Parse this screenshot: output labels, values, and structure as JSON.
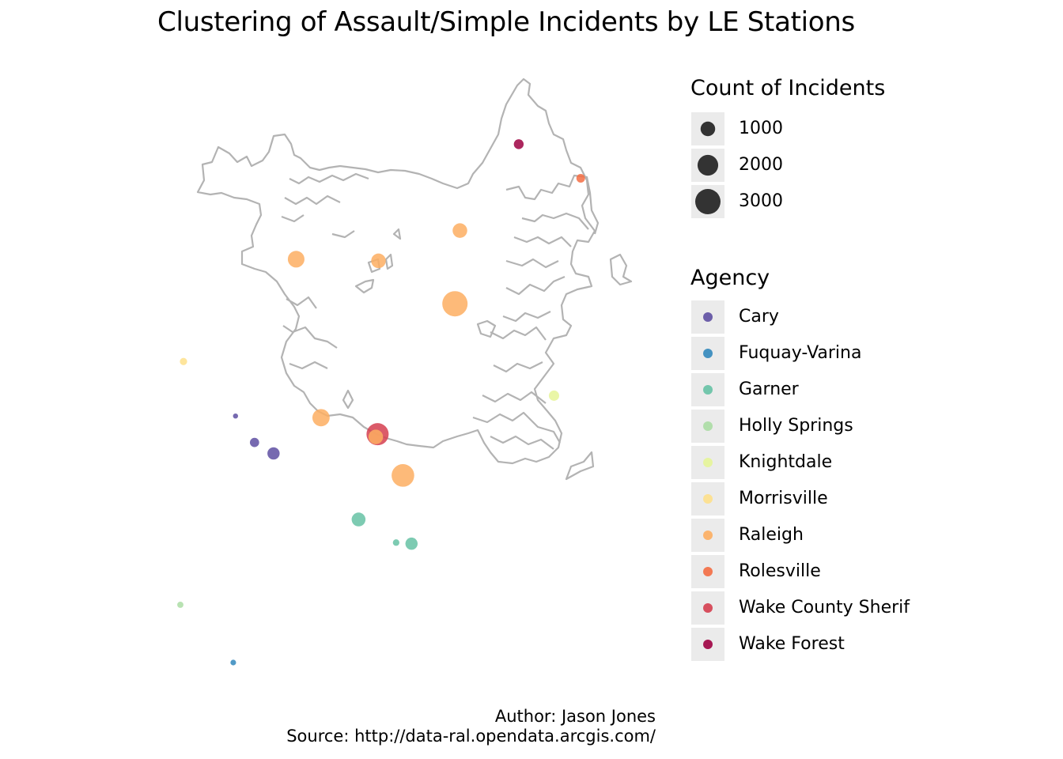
{
  "chart_data": {
    "type": "scatter",
    "title": "Clustering of Assault/Simple Incidents by LE Stations",
    "size_legend": {
      "title": "Count of Incidents",
      "breaks": [
        1000,
        2000,
        3000
      ],
      "labels": [
        "1000",
        "2000",
        "3000"
      ]
    },
    "color_legend": {
      "title": "Agency",
      "entries": [
        {
          "name": "Cary",
          "color": "#5e4fa2"
        },
        {
          "name": "Fuquay-Varina",
          "color": "#3288bd"
        },
        {
          "name": "Garner",
          "color": "#66c2a5"
        },
        {
          "name": "Holly Springs",
          "color": "#abdda4"
        },
        {
          "name": "Knightdale",
          "color": "#e6f598"
        },
        {
          "name": "Morrisville",
          "color": "#fee08b"
        },
        {
          "name": "Raleigh",
          "color": "#fdae61"
        },
        {
          "name": "Rolesville",
          "color": "#f46d43"
        },
        {
          "name": "Wake County Sherif",
          "color": "#d53e4f"
        },
        {
          "name": "Wake Forest",
          "color": "#9e0142"
        }
      ]
    },
    "points": [
      {
        "agency": "Wake Forest",
        "x": 0.748,
        "y": 0.942,
        "count": 450
      },
      {
        "agency": "Rolesville",
        "x": 0.885,
        "y": 0.88,
        "count": 350
      },
      {
        "agency": "Raleigh",
        "x": 0.618,
        "y": 0.785,
        "count": 1000
      },
      {
        "agency": "Raleigh",
        "x": 0.256,
        "y": 0.733,
        "count": 1300
      },
      {
        "agency": "Raleigh",
        "x": 0.438,
        "y": 0.73,
        "count": 1000
      },
      {
        "agency": "Raleigh",
        "x": 0.607,
        "y": 0.652,
        "count": 3000
      },
      {
        "agency": "Morrisville",
        "x": 0.007,
        "y": 0.547,
        "count": 250
      },
      {
        "agency": "Knightdale",
        "x": 0.826,
        "y": 0.485,
        "count": 500
      },
      {
        "agency": "Raleigh",
        "x": 0.311,
        "y": 0.445,
        "count": 1400
      },
      {
        "agency": "Cary",
        "x": 0.122,
        "y": 0.448,
        "count": 120
      },
      {
        "agency": "Wake County Sherif",
        "x": 0.436,
        "y": 0.415,
        "count": 2300
      },
      {
        "agency": "Raleigh",
        "x": 0.432,
        "y": 0.41,
        "count": 1000
      },
      {
        "agency": "Cary",
        "x": 0.164,
        "y": 0.4,
        "count": 400
      },
      {
        "agency": "Cary",
        "x": 0.206,
        "y": 0.38,
        "count": 700
      },
      {
        "agency": "Raleigh",
        "x": 0.492,
        "y": 0.34,
        "count": 2400
      },
      {
        "agency": "Garner",
        "x": 0.394,
        "y": 0.26,
        "count": 900
      },
      {
        "agency": "Garner",
        "x": 0.477,
        "y": 0.218,
        "count": 200
      },
      {
        "agency": "Garner",
        "x": 0.511,
        "y": 0.216,
        "count": 700
      },
      {
        "agency": "Holly Springs",
        "x": 0.0,
        "y": 0.105,
        "count": 180
      },
      {
        "agency": "Fuquay-Varina",
        "x": 0.117,
        "y": 0.0,
        "count": 150
      }
    ]
  },
  "caption": {
    "author": "Author: Jason Jones",
    "source": "Source: http://data-ral.opendata.arcgis.com/"
  }
}
